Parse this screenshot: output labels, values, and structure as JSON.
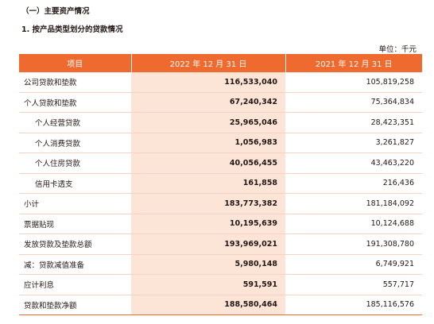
{
  "headings": {
    "section": "（一）主要资产情况",
    "subsection": "1. 按产品类型划分的贷款情况"
  },
  "unit": "单位：千元",
  "table": {
    "columns": [
      "项目",
      "2022 年 12 月 31 日",
      "2021 年 12 月 31 日"
    ],
    "rows": [
      {
        "label": "公司贷款和垫款",
        "indent": false,
        "v2022": "116,533,040",
        "v2021": "105,819,258"
      },
      {
        "label": "个人贷款和垫款",
        "indent": false,
        "v2022": "67,240,342",
        "v2021": "75,364,834"
      },
      {
        "label": "个人经营贷款",
        "indent": true,
        "v2022": "25,965,046",
        "v2021": "28,423,351"
      },
      {
        "label": "个人消费贷款",
        "indent": true,
        "v2022": "1,056,983",
        "v2021": "3,261,827"
      },
      {
        "label": "个人住房贷款",
        "indent": true,
        "v2022": "40,056,455",
        "v2021": "43,463,220"
      },
      {
        "label": "信用卡透支",
        "indent": true,
        "v2022": "161,858",
        "v2021": "216,436"
      },
      {
        "label": "小计",
        "indent": false,
        "v2022": "183,773,382",
        "v2021": "181,184,092"
      },
      {
        "label": "票据贴现",
        "indent": false,
        "v2022": "10,195,639",
        "v2021": "10,124,688"
      },
      {
        "label": "发放贷款及垫款总额",
        "indent": false,
        "v2022": "193,969,021",
        "v2021": "191,308,780"
      },
      {
        "label": "减：贷款减值准备",
        "indent": false,
        "v2022": "5,980,148",
        "v2021": "6,749,921"
      },
      {
        "label": "应计利息",
        "indent": false,
        "v2022": "591,591",
        "v2021": "557,717"
      },
      {
        "label": "贷款和垫款净额",
        "indent": false,
        "v2022": "188,580,464",
        "v2021": "185,116,576"
      }
    ]
  },
  "colors": {
    "header_bg": "#ef6a2f",
    "highlight_column_bg": "#fce4d7",
    "row_divider": "#f6d3c3"
  }
}
